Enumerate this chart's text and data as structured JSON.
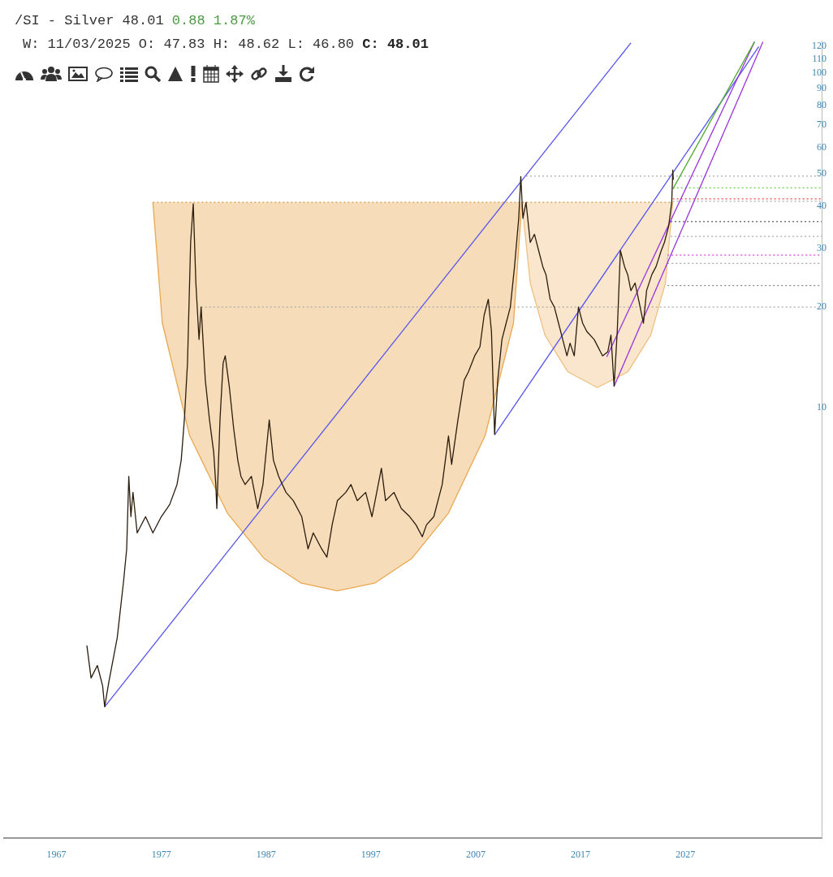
{
  "chart_data": {
    "type": "line",
    "title": "/SI - Silver 48.01",
    "subtitle": "W: 11/03/2025 O: 47.83 H: 48.62 L: 46.80",
    "annotations": [
      "0.88 1.87%",
      "C: 48.01"
    ],
    "log": true,
    "xlim": [
      1962,
      2040
    ],
    "xticks": [
      1967,
      1977,
      1987,
      1997,
      2007,
      2017,
      2027
    ],
    "ylim": [
      0.52,
      125
    ],
    "yticks": [
      10,
      20,
      30,
      40,
      50,
      60,
      70,
      80,
      90,
      100,
      110,
      120
    ],
    "series": [
      {
        "type": "area",
        "color": "#e9a850",
        "x": [
          1976.2,
          1977.1,
          1979.7,
          1983.3,
          1986.8,
          1990.3,
          1993.8,
          1997.4,
          2000.9,
          2004.4,
          2007.9,
          2010.6,
          2011.4
        ],
        "values": [
          41.1,
          17.9,
          8.27,
          4.85,
          3.55,
          3.0,
          2.84,
          3.0,
          3.55,
          4.85,
          8.27,
          17.9,
          41.1
        ]
      },
      {
        "type": "area",
        "color": "#efc083",
        "x": [
          2011.4,
          2012.2,
          2013.6,
          2015.8,
          2018.6,
          2021.5,
          2023.7,
          2025.1,
          2025.8
        ],
        "values": [
          41.1,
          23.6,
          16.5,
          12.8,
          11.5,
          12.8,
          16.5,
          23.6,
          41.1
        ]
      },
      {
        "color": "#d9943a",
        "line_style": "dotted",
        "x": [
          1976.2,
          2025.8
        ],
        "values": [
          41.1,
          41.1
        ]
      },
      {
        "color": "#aaaaaa",
        "line_style": "dotted",
        "x": [
          1980.8,
          2040
        ],
        "values": [
          20.0,
          20.0
        ]
      },
      {
        "color": "#aaaaaa",
        "line_style": "dotted",
        "x": [
          2011.8,
          2040
        ],
        "values": [
          49.2,
          49.2
        ]
      },
      {
        "color": "#66cc44",
        "line_style": "dotted",
        "x": [
          2025.8,
          2040
        ],
        "values": [
          45.4,
          45.4
        ]
      },
      {
        "color": "#ee4444",
        "line_style": "dotted",
        "x": [
          2025.8,
          2040
        ],
        "values": [
          42.1,
          42.1
        ]
      },
      {
        "color": "#aaaaaa",
        "line_style": "dotted",
        "x": [
          2025.8,
          2040
        ],
        "values": [
          41.4,
          41.4
        ]
      },
      {
        "color": "#555555",
        "line_style": "dotted",
        "x": [
          2025.6,
          2040
        ],
        "values": [
          36.0,
          36.0
        ]
      },
      {
        "color": "#aaaaaa",
        "line_style": "dotted",
        "x": [
          2025.6,
          2040
        ],
        "values": [
          32.5,
          32.5
        ]
      },
      {
        "color": "#dd44dd",
        "line_style": "dotted",
        "x": [
          2025.3,
          2040
        ],
        "values": [
          28.6,
          28.6
        ]
      },
      {
        "color": "#aaaaaa",
        "line_style": "dotted",
        "x": [
          2025.3,
          2040
        ],
        "values": [
          27.0,
          27.0
        ]
      },
      {
        "color": "#888888",
        "line_style": "dotted",
        "x": [
          2025.3,
          2040
        ],
        "values": [
          23.2,
          23.2
        ]
      },
      {
        "color": "#5555ee",
        "x": [
          1971.6,
          2021.8
        ],
        "values": [
          1.28,
          123
        ]
      },
      {
        "color": "#5555ee",
        "x": [
          2008.8,
          2034.0
        ],
        "values": [
          8.3,
          120
        ]
      },
      {
        "color": "#9933dd",
        "x": [
          2019.5,
          2033.6
        ],
        "values": [
          14.2,
          124
        ]
      },
      {
        "color": "#9933dd",
        "x": [
          2020.2,
          2034.4
        ],
        "values": [
          11.6,
          124
        ]
      },
      {
        "color": "#55aa33",
        "x": [
          2025.8,
          2033.6
        ],
        "values": [
          45,
          124
        ]
      },
      {
        "color": "#2b1d0e",
        "x": [
          1969.9,
          1970.3,
          1970.9,
          1971.4,
          1971.6,
          1972.0,
          1972.8,
          1973.4,
          1973.7,
          1973.9,
          1974.1,
          1974.3,
          1974.7,
          1975.5,
          1976.2,
          1977.0,
          1977.8,
          1978.5,
          1978.9,
          1979.2,
          1979.5,
          1979.8,
          1980.05,
          1980.3,
          1980.6,
          1980.8,
          1981.2,
          1981.6,
          1982.0,
          1982.2,
          1982.3,
          1982.6,
          1982.9,
          1983.1,
          1983.5,
          1983.9,
          1984.3,
          1984.6,
          1985.0,
          1985.6,
          1986.2,
          1986.7,
          1987.3,
          1987.7,
          1988.2,
          1988.9,
          1989.6,
          1990.4,
          1991.0,
          1991.5,
          1992.3,
          1992.8,
          1993.3,
          1993.8,
          1994.6,
          1995.1,
          1995.7,
          1996.5,
          1997.1,
          1997.7,
          1998.0,
          1998.4,
          1999.2,
          1999.9,
          2000.7,
          2001.3,
          2001.9,
          2002.3,
          2003.0,
          2003.8,
          2004.2,
          2004.4,
          2004.7,
          2005.3,
          2005.9,
          2006.3,
          2006.9,
          2007.4,
          2007.8,
          2008.2,
          2008.5,
          2008.8,
          2009.1,
          2009.5,
          2009.9,
          2010.3,
          2010.7,
          2010.9,
          2011.1,
          2011.3,
          2011.5,
          2011.8,
          2012.2,
          2012.6,
          2013.0,
          2013.4,
          2013.7,
          2014.1,
          2014.5,
          2014.9,
          2015.3,
          2015.7,
          2016.0,
          2016.4,
          2016.8,
          2017.2,
          2017.6,
          2018.3,
          2019.1,
          2019.6,
          2019.9,
          2020.2,
          2020.5,
          2020.8,
          2021.2,
          2021.5,
          2021.8,
          2022.2,
          2022.6,
          2023.0,
          2023.3,
          2023.8,
          2024.2,
          2024.7,
          2025.0,
          2025.4,
          2025.7,
          2025.8,
          2025.85
        ],
        "values": [
          1.95,
          1.56,
          1.7,
          1.48,
          1.28,
          1.52,
          2.06,
          3.03,
          3.79,
          6.24,
          4.73,
          5.59,
          4.23,
          4.73,
          4.23,
          4.73,
          5.14,
          5.9,
          6.97,
          9.2,
          13.6,
          31.2,
          40.7,
          23.6,
          16.0,
          20.0,
          12.1,
          9.2,
          7.37,
          5.9,
          5.0,
          9.2,
          13.6,
          14.3,
          11.5,
          8.71,
          6.97,
          6.24,
          5.9,
          6.24,
          5.0,
          5.9,
          9.2,
          6.97,
          6.24,
          5.59,
          5.28,
          4.73,
          3.79,
          4.23,
          3.79,
          3.58,
          4.47,
          5.28,
          5.59,
          5.9,
          5.28,
          5.59,
          4.73,
          5.9,
          6.6,
          5.28,
          5.59,
          5.0,
          4.73,
          4.47,
          4.12,
          4.47,
          4.73,
          5.9,
          7.37,
          8.24,
          6.78,
          9.2,
          12.1,
          12.8,
          14.3,
          15.2,
          18.9,
          21.1,
          16.9,
          8.33,
          12.1,
          16.0,
          17.9,
          20.0,
          26.4,
          31.2,
          36.8,
          49.1,
          36.8,
          41.1,
          31.2,
          33.0,
          29.5,
          26.4,
          25.0,
          21.1,
          20.0,
          17.9,
          16.0,
          14.3,
          15.6,
          14.3,
          20.0,
          17.9,
          16.9,
          16.0,
          14.3,
          14.7,
          16.5,
          11.6,
          16.9,
          29.5,
          26.4,
          25.0,
          22.4,
          23.6,
          20.6,
          17.9,
          22.4,
          25.0,
          26.4,
          29.5,
          31.2,
          34.8,
          41.1,
          51.3,
          48.0
        ]
      }
    ]
  }
}
